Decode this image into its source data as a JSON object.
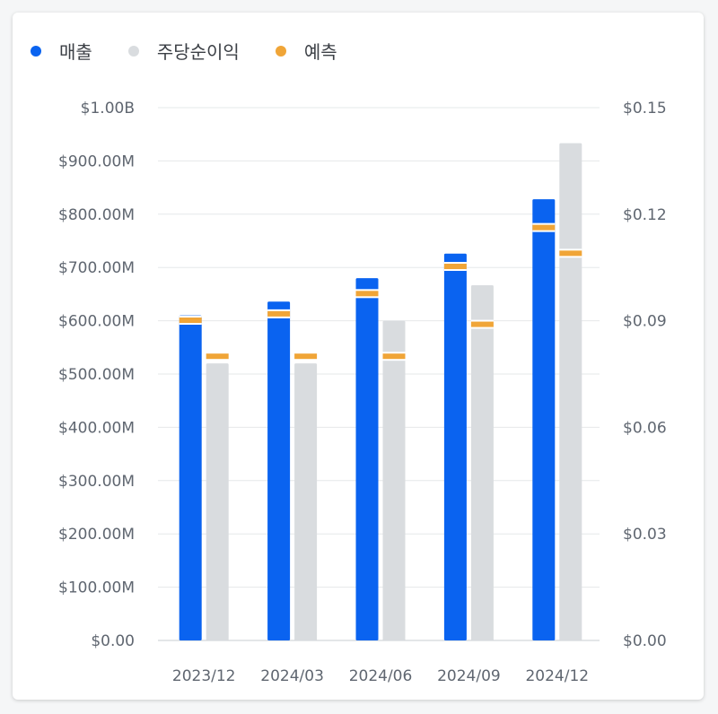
{
  "legend": [
    {
      "label": "매출",
      "color": "#0a63f0"
    },
    {
      "label": "주당순이익",
      "color": "#d9dcdf"
    },
    {
      "label": "예측",
      "color": "#f0a537"
    }
  ],
  "chart_data": {
    "type": "bar",
    "categories": [
      "2023/12",
      "2024/03",
      "2024/06",
      "2024/09",
      "2024/12"
    ],
    "y_left": {
      "min": 0,
      "max": 1000000000,
      "ticks": [
        0,
        100000000,
        200000000,
        300000000,
        400000000,
        500000000,
        600000000,
        700000000,
        800000000,
        900000000,
        1000000000
      ],
      "tick_labels": [
        "$0.00",
        "$100.00M",
        "$200.00M",
        "$300.00M",
        "$400.00M",
        "$500.00M",
        "$600.00M",
        "$700.00M",
        "$800.00M",
        "$900.00M",
        "$1.00B"
      ]
    },
    "y_right": {
      "min": 0,
      "max": 0.15,
      "ticks": [
        0,
        0.03,
        0.06,
        0.09,
        0.12,
        0.15
      ],
      "tick_labels": [
        "$0.00",
        "$0.03",
        "$0.06",
        "$0.09",
        "$0.12",
        "$0.15"
      ]
    },
    "series": [
      {
        "name": "매출",
        "axis": "left",
        "color": "#0a63f0",
        "values": [
          610000000,
          636000000,
          680000000,
          726000000,
          828000000
        ]
      },
      {
        "name": "주당순이익",
        "axis": "right",
        "color": "#d9dcdf",
        "values": [
          0.078,
          0.078,
          0.09,
          0.1,
          0.14
        ]
      },
      {
        "name": "예측",
        "kind": "estimate_marker",
        "color": "#f0a537",
        "revenue": [
          601000000,
          613000000,
          651000000,
          702000000,
          775000000
        ],
        "eps": [
          0.08,
          0.08,
          0.08,
          0.089,
          0.109
        ]
      }
    ],
    "grid": true,
    "legend_position": "top-left"
  }
}
